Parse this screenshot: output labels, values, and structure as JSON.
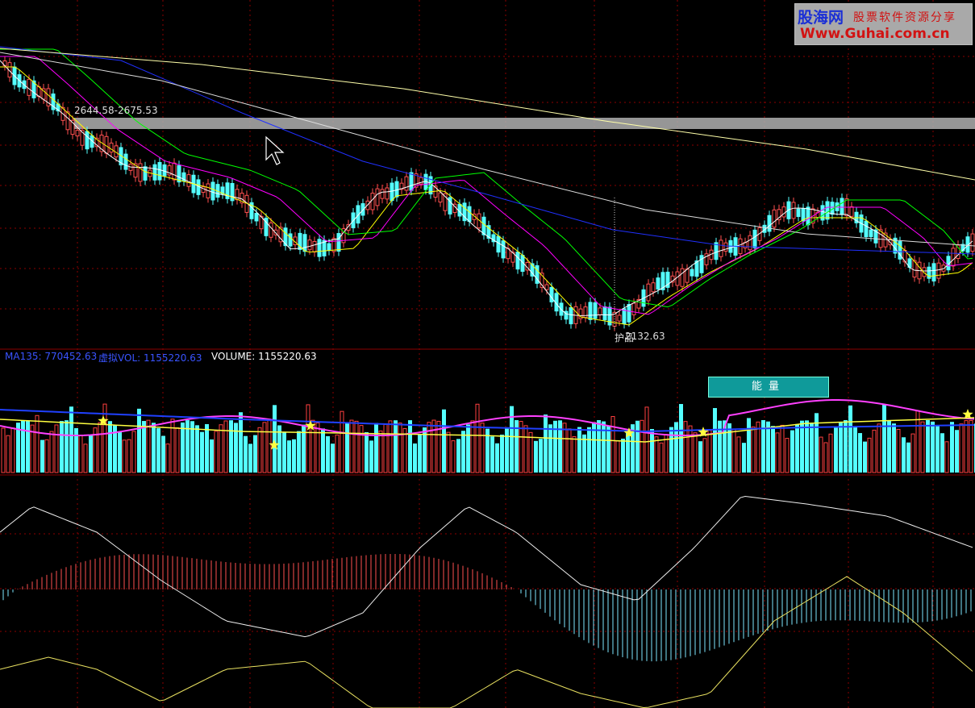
{
  "watermark": {
    "site_name": "股海网",
    "tagline": "股票软件资源分享",
    "url": "Www.Guhai.com.cn"
  },
  "price_panel": {
    "range_label": "2644.58-2675.53",
    "low_label": "2132.63",
    "low_prefix": "护品",
    "band_color": "#b0b0b0"
  },
  "volume_panel": {
    "ma135_label": "MA135: 770452.63",
    "virtual_vol_label": "虚拟VOL: 1155220.63",
    "volume_label": "VOLUME: 1155220.63",
    "energy_button_label": "能量",
    "colors": {
      "up_bar": "#ff4040",
      "down_bar": "#54ffff",
      "ma_short": "#ff40ff",
      "ma_mid": "#ffff40",
      "ma_long": "#2040ff"
    }
  },
  "colors": {
    "grid": "#8b0000",
    "ma5": "#ffffff",
    "ma10": "#ffff00",
    "ma20": "#ff00ff",
    "ma30": "#00ff00",
    "ma60": "#2030ff",
    "ma120": "#ffffaa"
  },
  "icons": {
    "cursor": "arrow-cursor-icon",
    "star": "star-icon"
  }
}
